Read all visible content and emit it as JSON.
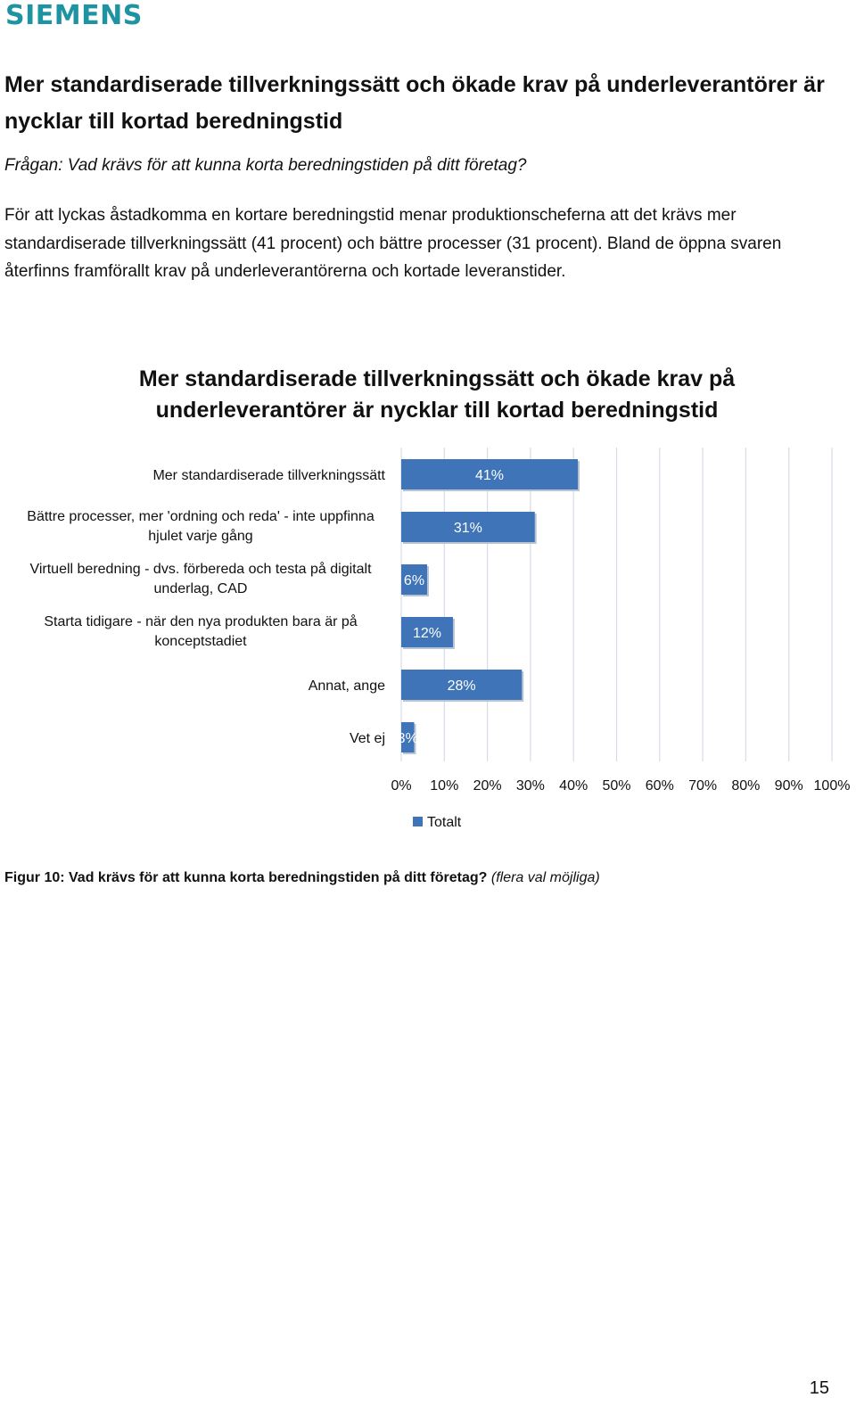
{
  "brand": {
    "logo_text": "SIEMENS",
    "color": "#1e94a3"
  },
  "heading": "Mer standardiserade tillverkningssätt och ökade krav på underleverantörer är nycklar till kortad beredningstid",
  "question": "Frågan: Vad krävs för att kunna korta beredningstiden på ditt företag?",
  "body_text": "För att lyckas åstadkomma en kortare beredningstid menar produktionscheferna att det krävs mer standardiserade tillverkningssätt (41 procent) och bättre processer (31 procent). Bland de öppna svaren återfinns framförallt krav på underleverantörerna och kortade leveranstider.",
  "chart_data": {
    "type": "bar",
    "orientation": "horizontal",
    "title": "Mer standardiserade tillverkningssätt och ökade krav på underleverantörer är nycklar till kortad beredningstid",
    "categories": [
      "Mer standardiserade tillverkningssätt",
      "Bättre processer, mer 'ordning och reda' - inte uppfinna hjulet varje gång",
      "Virtuell beredning - dvs. förbereda och testa på digitalt underlag, CAD",
      "Starta tidigare - när den nya produkten bara är på konceptstadiet",
      "Annat, ange",
      "Vet ej"
    ],
    "category_lines": [
      [
        "Mer standardiserade tillverkningssätt"
      ],
      [
        "Bättre processer, mer 'ordning och reda' - inte uppfinna",
        "hjulet varje gång"
      ],
      [
        "Virtuell beredning - dvs. förbereda och testa på digitalt",
        "underlag, CAD"
      ],
      [
        "Starta tidigare - när den nya produkten bara är på",
        "konceptstadiet"
      ],
      [
        "Annat, ange"
      ],
      [
        "Vet ej"
      ]
    ],
    "series": [
      {
        "name": "Totalt",
        "values": [
          41,
          31,
          6,
          12,
          28,
          3
        ],
        "color": "#3f74b8"
      }
    ],
    "data_labels": [
      "41%",
      "31%",
      "6%",
      "12%",
      "28%",
      "3%"
    ],
    "xlim": [
      0,
      100
    ],
    "x_ticks": [
      "0%",
      "10%",
      "20%",
      "30%",
      "40%",
      "50%",
      "60%",
      "70%",
      "80%",
      "90%",
      "100%"
    ],
    "grid": true,
    "legend": "bottom"
  },
  "caption": {
    "bold": "Figur 10: Vad krävs för att kunna korta beredningstiden på ditt företag?",
    "italic": "(flera val möjliga)"
  },
  "page_number": "15"
}
